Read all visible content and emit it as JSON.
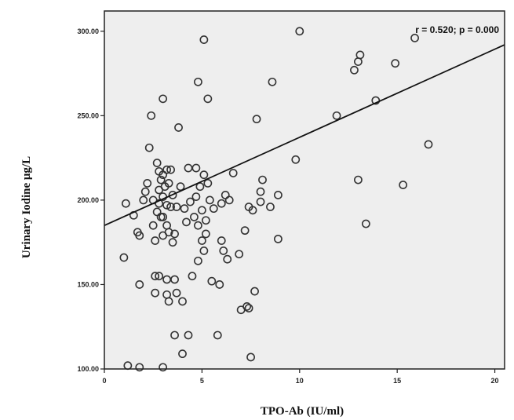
{
  "chart_data": {
    "type": "scatter",
    "xlabel": "TPO-Ab (IU/ml)",
    "ylabel": "Urinary Iodine μg/L",
    "annotation": "r = 0.520; p = 0.000",
    "xlim": [
      0,
      20.5
    ],
    "ylim": [
      100,
      312
    ],
    "x_ticks": [
      0,
      5,
      10,
      15,
      20
    ],
    "x_tick_labels": [
      "0",
      "5",
      "10",
      "15",
      "20"
    ],
    "y_ticks": [
      100,
      150,
      200,
      250,
      300
    ],
    "y_tick_labels": [
      "100.00",
      "150.00",
      "200.00",
      "250.00",
      "300.00"
    ],
    "grid": false,
    "marker": "open-circle",
    "plot_background": "#eeeeee",
    "point_color": "#333333",
    "fit_line": {
      "x": [
        0,
        20.5
      ],
      "y": [
        185,
        292
      ]
    },
    "points": [
      {
        "x": 1.1,
        "y": 198
      },
      {
        "x": 1.5,
        "y": 191
      },
      {
        "x": 1.7,
        "y": 181
      },
      {
        "x": 1.8,
        "y": 179
      },
      {
        "x": 2.0,
        "y": 200
      },
      {
        "x": 2.1,
        "y": 205
      },
      {
        "x": 2.2,
        "y": 210
      },
      {
        "x": 2.3,
        "y": 231
      },
      {
        "x": 2.4,
        "y": 250
      },
      {
        "x": 2.5,
        "y": 200
      },
      {
        "x": 2.5,
        "y": 185
      },
      {
        "x": 2.6,
        "y": 176
      },
      {
        "x": 2.6,
        "y": 155
      },
      {
        "x": 2.6,
        "y": 145
      },
      {
        "x": 2.7,
        "y": 222
      },
      {
        "x": 2.7,
        "y": 193
      },
      {
        "x": 2.8,
        "y": 217
      },
      {
        "x": 2.8,
        "y": 206
      },
      {
        "x": 2.8,
        "y": 198
      },
      {
        "x": 2.8,
        "y": 155
      },
      {
        "x": 2.9,
        "y": 212
      },
      {
        "x": 2.9,
        "y": 190
      },
      {
        "x": 3.0,
        "y": 260
      },
      {
        "x": 3.0,
        "y": 215
      },
      {
        "x": 3.0,
        "y": 202
      },
      {
        "x": 3.0,
        "y": 190
      },
      {
        "x": 3.0,
        "y": 179
      },
      {
        "x": 3.1,
        "y": 208
      },
      {
        "x": 3.2,
        "y": 218
      },
      {
        "x": 3.2,
        "y": 197
      },
      {
        "x": 3.2,
        "y": 185
      },
      {
        "x": 3.2,
        "y": 153
      },
      {
        "x": 3.2,
        "y": 144
      },
      {
        "x": 3.3,
        "y": 210
      },
      {
        "x": 3.3,
        "y": 181
      },
      {
        "x": 3.3,
        "y": 140
      },
      {
        "x": 3.4,
        "y": 218
      },
      {
        "x": 3.4,
        "y": 196
      },
      {
        "x": 3.5,
        "y": 203
      },
      {
        "x": 3.5,
        "y": 175
      },
      {
        "x": 3.6,
        "y": 180
      },
      {
        "x": 3.6,
        "y": 153
      },
      {
        "x": 3.6,
        "y": 120
      },
      {
        "x": 3.7,
        "y": 196
      },
      {
        "x": 3.7,
        "y": 145
      },
      {
        "x": 3.8,
        "y": 243
      },
      {
        "x": 3.9,
        "y": 208
      },
      {
        "x": 4.0,
        "y": 140
      },
      {
        "x": 4.0,
        "y": 109
      },
      {
        "x": 4.1,
        "y": 195
      },
      {
        "x": 4.2,
        "y": 187
      },
      {
        "x": 4.3,
        "y": 219
      },
      {
        "x": 4.3,
        "y": 120
      },
      {
        "x": 4.4,
        "y": 199
      },
      {
        "x": 4.5,
        "y": 155
      },
      {
        "x": 4.6,
        "y": 190
      },
      {
        "x": 4.7,
        "y": 219
      },
      {
        "x": 4.7,
        "y": 202
      },
      {
        "x": 4.8,
        "y": 270
      },
      {
        "x": 4.8,
        "y": 185
      },
      {
        "x": 4.8,
        "y": 164
      },
      {
        "x": 4.9,
        "y": 208
      },
      {
        "x": 5.0,
        "y": 194
      },
      {
        "x": 5.0,
        "y": 176
      },
      {
        "x": 5.1,
        "y": 295
      },
      {
        "x": 5.1,
        "y": 215
      },
      {
        "x": 5.1,
        "y": 170
      },
      {
        "x": 5.2,
        "y": 188
      },
      {
        "x": 5.2,
        "y": 180
      },
      {
        "x": 5.3,
        "y": 260
      },
      {
        "x": 5.3,
        "y": 210
      },
      {
        "x": 5.4,
        "y": 200
      },
      {
        "x": 5.5,
        "y": 152
      },
      {
        "x": 5.6,
        "y": 195
      },
      {
        "x": 5.8,
        "y": 120
      },
      {
        "x": 5.9,
        "y": 150
      },
      {
        "x": 6.0,
        "y": 198
      },
      {
        "x": 6.0,
        "y": 176
      },
      {
        "x": 6.1,
        "y": 170
      },
      {
        "x": 6.2,
        "y": 203
      },
      {
        "x": 6.3,
        "y": 165
      },
      {
        "x": 6.4,
        "y": 200
      },
      {
        "x": 6.6,
        "y": 216
      },
      {
        "x": 6.9,
        "y": 168
      },
      {
        "x": 7.0,
        "y": 135
      },
      {
        "x": 7.2,
        "y": 182
      },
      {
        "x": 7.3,
        "y": 137
      },
      {
        "x": 7.4,
        "y": 196
      },
      {
        "x": 7.4,
        "y": 136
      },
      {
        "x": 7.5,
        "y": 107
      },
      {
        "x": 7.6,
        "y": 194
      },
      {
        "x": 7.7,
        "y": 146
      },
      {
        "x": 7.8,
        "y": 248
      },
      {
        "x": 8.0,
        "y": 205
      },
      {
        "x": 8.0,
        "y": 199
      },
      {
        "x": 8.1,
        "y": 212
      },
      {
        "x": 8.5,
        "y": 196
      },
      {
        "x": 8.6,
        "y": 270
      },
      {
        "x": 8.9,
        "y": 203
      },
      {
        "x": 8.9,
        "y": 177
      },
      {
        "x": 9.8,
        "y": 224
      },
      {
        "x": 10.0,
        "y": 300
      },
      {
        "x": 11.9,
        "y": 250
      },
      {
        "x": 12.8,
        "y": 277
      },
      {
        "x": 13.0,
        "y": 212
      },
      {
        "x": 13.0,
        "y": 282
      },
      {
        "x": 13.1,
        "y": 286
      },
      {
        "x": 13.4,
        "y": 186
      },
      {
        "x": 13.9,
        "y": 259
      },
      {
        "x": 14.9,
        "y": 281
      },
      {
        "x": 15.3,
        "y": 209
      },
      {
        "x": 15.9,
        "y": 296
      },
      {
        "x": 16.6,
        "y": 233
      },
      {
        "x": 1.2,
        "y": 102
      },
      {
        "x": 1.8,
        "y": 101
      },
      {
        "x": 3.0,
        "y": 101
      },
      {
        "x": 1.0,
        "y": 166
      },
      {
        "x": 1.8,
        "y": 150
      }
    ]
  }
}
